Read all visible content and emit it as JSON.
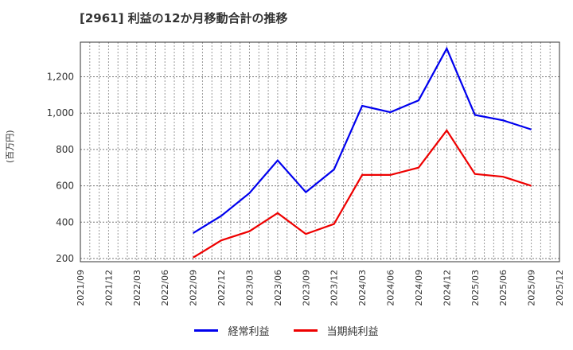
{
  "title": "[2961]  利益の12か月移動合計の推移",
  "ylabel": "(百万円)",
  "legend": [
    {
      "label": "経常利益",
      "color": "#0000ee"
    },
    {
      "label": "当期純利益",
      "color": "#ee0000"
    }
  ],
  "chart_data": {
    "type": "line",
    "title": "[2961]  利益の12か月移動合計の推移",
    "xlabel": "",
    "ylabel": "(百万円)",
    "x_ticks": [
      "2021/09",
      "2021/12",
      "2022/03",
      "2022/06",
      "2022/09",
      "2022/12",
      "2023/03",
      "2023/06",
      "2023/09",
      "2023/12",
      "2024/03",
      "2024/06",
      "2024/09",
      "2024/12",
      "2025/03",
      "2025/06",
      "2025/09",
      "2025/12"
    ],
    "y_ticks": [
      200,
      400,
      600,
      800,
      1000,
      1200
    ],
    "y_tick_labels": [
      "200",
      "400",
      "600",
      "800",
      "1,000",
      "1,200"
    ],
    "ylim": [
      180,
      1400
    ],
    "grid": true,
    "legend_position": "bottom",
    "x": [
      "2022/09",
      "2022/12",
      "2023/03",
      "2023/06",
      "2023/09",
      "2023/12",
      "2024/03",
      "2024/06",
      "2024/09",
      "2024/12",
      "2025/03",
      "2025/06",
      "2025/09"
    ],
    "series": [
      {
        "name": "経常利益",
        "color": "#0000ee",
        "values": [
          340,
          435,
          560,
          740,
          565,
          690,
          1040,
          1005,
          1070,
          1355,
          990,
          960,
          910
        ]
      },
      {
        "name": "当期純利益",
        "color": "#ee0000",
        "values": [
          205,
          300,
          350,
          450,
          335,
          390,
          660,
          660,
          700,
          905,
          665,
          650,
          600
        ]
      }
    ]
  }
}
